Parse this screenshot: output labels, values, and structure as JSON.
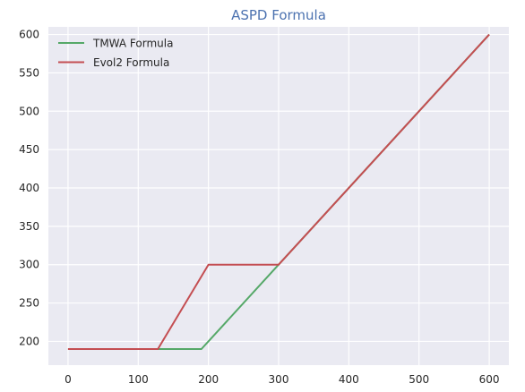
{
  "chart_data": {
    "type": "line",
    "title": "ASPD Formula",
    "xlabel": "",
    "ylabel": "",
    "xlim": [
      -28,
      628
    ],
    "ylim": [
      169,
      610
    ],
    "xticks": [
      0,
      100,
      200,
      300,
      400,
      500,
      600
    ],
    "yticks": [
      200,
      250,
      300,
      350,
      400,
      450,
      500,
      550,
      600
    ],
    "grid": true,
    "legend_position": "top-left",
    "series": [
      {
        "name": "TMWA Formula",
        "color": "#55a868",
        "x": [
          0,
          190,
          300,
          600
        ],
        "y": [
          190,
          190,
          300,
          600
        ]
      },
      {
        "name": "Evol2 Formula",
        "color": "#c44e52",
        "x": [
          0,
          128,
          200,
          300,
          600
        ],
        "y": [
          190,
          190,
          300,
          300,
          600
        ]
      }
    ]
  },
  "colors": {
    "plot_background": "#eaeaf2",
    "grid": "#ffffff",
    "title": "#4c72b0"
  }
}
